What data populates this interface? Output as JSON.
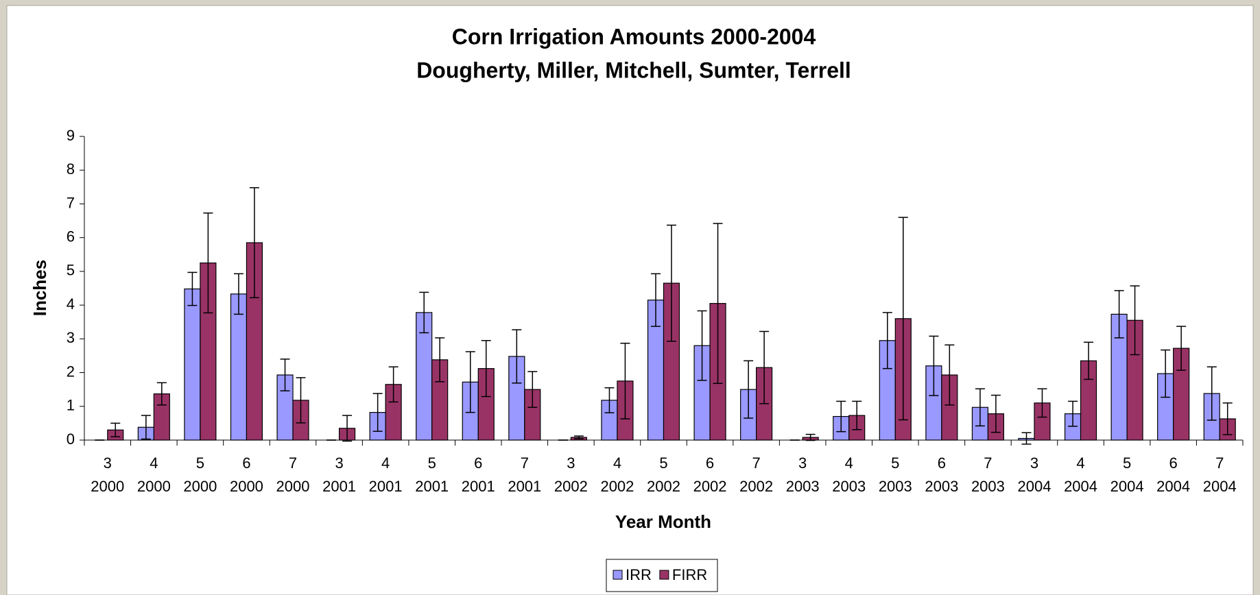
{
  "chart_data": {
    "type": "bar",
    "title": [
      "Corn Irrigation Amounts 2000-2004",
      "Dougherty, Miller, Mitchell, Sumter, Terrell"
    ],
    "x_label": "Year Month",
    "y_label": "Inches",
    "categories": [
      [
        "3",
        "2000"
      ],
      [
        "4",
        "2000"
      ],
      [
        "5",
        "2000"
      ],
      [
        "6",
        "2000"
      ],
      [
        "7",
        "2000"
      ],
      [
        "3",
        "2001"
      ],
      [
        "4",
        "2001"
      ],
      [
        "5",
        "2001"
      ],
      [
        "6",
        "2001"
      ],
      [
        "7",
        "2001"
      ],
      [
        "3",
        "2002"
      ],
      [
        "4",
        "2002"
      ],
      [
        "5",
        "2002"
      ],
      [
        "6",
        "2002"
      ],
      [
        "7",
        "2002"
      ],
      [
        "3",
        "2003"
      ],
      [
        "4",
        "2003"
      ],
      [
        "5",
        "2003"
      ],
      [
        "6",
        "2003"
      ],
      [
        "7",
        "2003"
      ],
      [
        "3",
        "2004"
      ],
      [
        "4",
        "2004"
      ],
      [
        "5",
        "2004"
      ],
      [
        "6",
        "2004"
      ],
      [
        "7",
        "2004"
      ]
    ],
    "series": [
      {
        "name": "IRR",
        "color": "#9999ff",
        "values": [
          0,
          0.38,
          4.48,
          4.33,
          1.93,
          0,
          0.82,
          3.78,
          1.72,
          2.48,
          0,
          1.18,
          4.15,
          2.8,
          1.5,
          0,
          0.7,
          2.95,
          2.2,
          0.97,
          0.05,
          0.78,
          3.73,
          1.97,
          1.38
        ],
        "errors": [
          0,
          0.35,
          0.49,
          0.6,
          0.47,
          0,
          0.56,
          0.6,
          0.9,
          0.79,
          0,
          0.37,
          0.78,
          1.03,
          0.85,
          0,
          0.45,
          0.83,
          0.88,
          0.55,
          0.17,
          0.37,
          0.7,
          0.7,
          0.79
        ]
      },
      {
        "name": "FIRR",
        "color": "#993366",
        "values": [
          0.3,
          1.37,
          5.25,
          5.85,
          1.18,
          0.35,
          1.65,
          2.38,
          2.12,
          1.5,
          0.08,
          1.75,
          4.65,
          4.05,
          2.15,
          0.08,
          0.73,
          3.6,
          1.93,
          0.78,
          1.1,
          2.35,
          3.55,
          2.72,
          0.63
        ],
        "errors": [
          0.2,
          0.33,
          1.48,
          1.63,
          0.67,
          0.38,
          0.52,
          0.65,
          0.83,
          0.53,
          0.04,
          1.12,
          1.72,
          2.37,
          1.07,
          0.09,
          0.42,
          3.0,
          0.89,
          0.55,
          0.42,
          0.55,
          1.02,
          0.65,
          0.47
        ]
      }
    ],
    "ylim": [
      0,
      9
    ],
    "yticks": [
      0,
      1,
      2,
      3,
      4,
      5,
      6,
      7,
      8,
      9
    ],
    "legend": "bottom"
  }
}
